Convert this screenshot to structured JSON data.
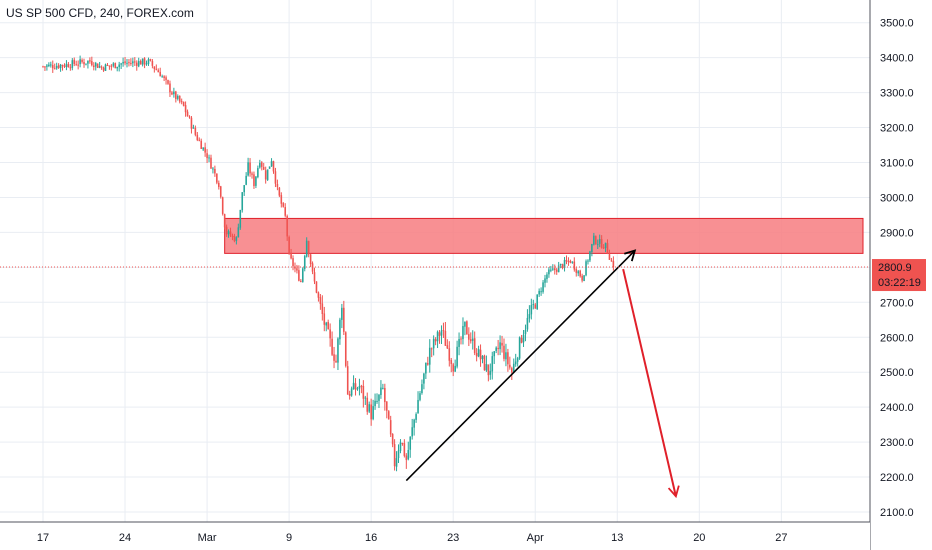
{
  "header": {
    "symbol_title": "US SP 500 CFD, 240, FOREX.com"
  },
  "price_tag": {
    "price": "2800.9",
    "countdown": "03:22:19"
  },
  "colors": {
    "up": "#26a69a",
    "down": "#ef5350",
    "zone_fill": "#f77c80",
    "zone_border": "#e0202a",
    "arrow_red": "#e0202a",
    "trendline": "#000000",
    "grid": "#e9edf3"
  },
  "chart_data": {
    "type": "candlestick",
    "title": "US SP 500 CFD, 240, FOREX.com",
    "ylim": [
      2060,
      3560
    ],
    "y_ticks": [
      2100,
      2200,
      2300,
      2400,
      2500,
      2600,
      2700,
      2800,
      2900,
      3000,
      3100,
      3200,
      3300,
      3400,
      3500
    ],
    "y_tick_labels": [
      "2100.0",
      "2200.0",
      "2300.0",
      "2400.0",
      "2500.0",
      "2600.0",
      "2700.0",
      "2800.0",
      "2900.0",
      "3000.0",
      "3100.0",
      "3200.0",
      "3300.0",
      "3400.0",
      "3500.0"
    ],
    "x_tick_labels": [
      "17",
      "24",
      "Mar",
      "9",
      "16",
      "23",
      "Apr",
      "13",
      "20",
      "27"
    ],
    "last_price": 2800.9,
    "anchors": [
      {
        "d": 0,
        "p": 3375
      },
      {
        "d": 2,
        "p": 3380
      },
      {
        "d": 4,
        "p": 3390
      },
      {
        "d": 5,
        "p": 3372
      },
      {
        "d": 7,
        "p": 3385
      },
      {
        "d": 9,
        "p": 3388
      },
      {
        "d": 10,
        "p": 3355
      },
      {
        "d": 11,
        "p": 3300
      },
      {
        "d": 12,
        "p": 3260
      },
      {
        "d": 13,
        "p": 3180
      },
      {
        "d": 14,
        "p": 3120
      },
      {
        "d": 15,
        "p": 3040
      },
      {
        "d": 15.6,
        "p": 2900
      },
      {
        "d": 16.5,
        "p": 2880
      },
      {
        "d": 17,
        "p": 3010
      },
      {
        "d": 17.5,
        "p": 3090
      },
      {
        "d": 18,
        "p": 3040
      },
      {
        "d": 18.5,
        "p": 3110
      },
      {
        "d": 19,
        "p": 3060
      },
      {
        "d": 19.5,
        "p": 3110
      },
      {
        "d": 20,
        "p": 3020
      },
      {
        "d": 20.7,
        "p": 2940
      },
      {
        "d": 21,
        "p": 2830
      },
      {
        "d": 22,
        "p": 2760
      },
      {
        "d": 22.5,
        "p": 2880
      },
      {
        "d": 23,
        "p": 2780
      },
      {
        "d": 24,
        "p": 2640
      },
      {
        "d": 25,
        "p": 2530
      },
      {
        "d": 25.5,
        "p": 2700
      },
      {
        "d": 26,
        "p": 2440
      },
      {
        "d": 27,
        "p": 2460
      },
      {
        "d": 28,
        "p": 2380
      },
      {
        "d": 29,
        "p": 2450
      },
      {
        "d": 30,
        "p": 2240
      },
      {
        "d": 30.5,
        "p": 2310
      },
      {
        "d": 31,
        "p": 2250
      },
      {
        "d": 32,
        "p": 2420
      },
      {
        "d": 33,
        "p": 2560
      },
      {
        "d": 34,
        "p": 2620
      },
      {
        "d": 35,
        "p": 2520
      },
      {
        "d": 36,
        "p": 2630
      },
      {
        "d": 37,
        "p": 2560
      },
      {
        "d": 38,
        "p": 2500
      },
      {
        "d": 39,
        "p": 2580
      },
      {
        "d": 40,
        "p": 2500
      },
      {
        "d": 41,
        "p": 2620
      },
      {
        "d": 42,
        "p": 2700
      },
      {
        "d": 43,
        "p": 2780
      },
      {
        "d": 44,
        "p": 2800
      },
      {
        "d": 45,
        "p": 2820
      },
      {
        "d": 46,
        "p": 2770
      },
      {
        "d": 47,
        "p": 2880
      },
      {
        "d": 48,
        "p": 2860
      },
      {
        "d": 48.7,
        "p": 2800.9
      }
    ],
    "resistance_zone": {
      "y_top": 2940,
      "y_bottom": 2840,
      "x_start_day": 15.5
    },
    "trendline": {
      "from": {
        "d": 31,
        "p": 2190
      },
      "to": {
        "d": 50.5,
        "p": 2848
      }
    },
    "projection_arrow": {
      "from": {
        "d": 49.5,
        "p": 2795
      },
      "to": {
        "d": 54,
        "p": 2145
      }
    }
  }
}
